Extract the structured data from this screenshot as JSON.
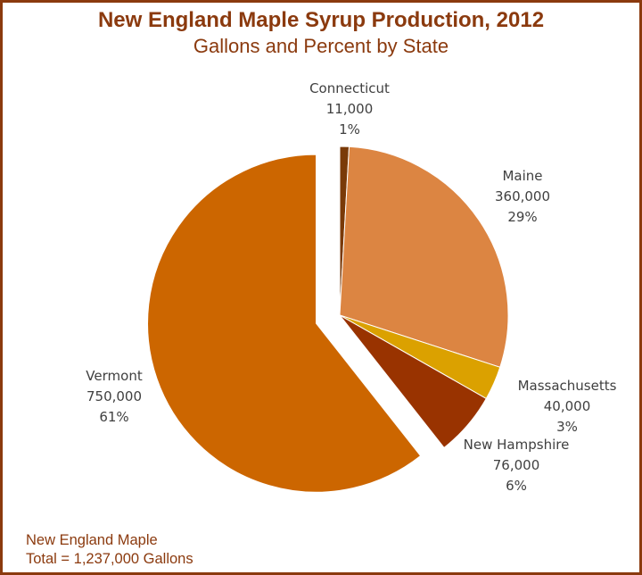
{
  "chart_data": {
    "type": "pie",
    "title": "New England Maple Syrup Production, 2012",
    "subtitle": "Gallons and Percent by State",
    "slices": [
      {
        "name": "Connecticut",
        "value": 11000,
        "value_label": "11,000",
        "percent_label": "1%",
        "color": "#7A3A08"
      },
      {
        "name": "Maine",
        "value": 360000,
        "value_label": "360,000",
        "percent_label": "29%",
        "color": "#DC8542"
      },
      {
        "name": "Massachusetts",
        "value": 40000,
        "value_label": "40,000",
        "percent_label": "3%",
        "color": "#DBA100"
      },
      {
        "name": "New Hampshire",
        "value": 76000,
        "value_label": "76,000",
        "percent_label": "6%",
        "color": "#993300"
      },
      {
        "name": "Vermont",
        "value": 750000,
        "value_label": "750,000",
        "percent_label": "61%",
        "color": "#CC6600",
        "exploded": true
      }
    ],
    "footnote": {
      "line1": "New England Maple",
      "line2": "Total  = 1,237,000 Gallons"
    }
  }
}
